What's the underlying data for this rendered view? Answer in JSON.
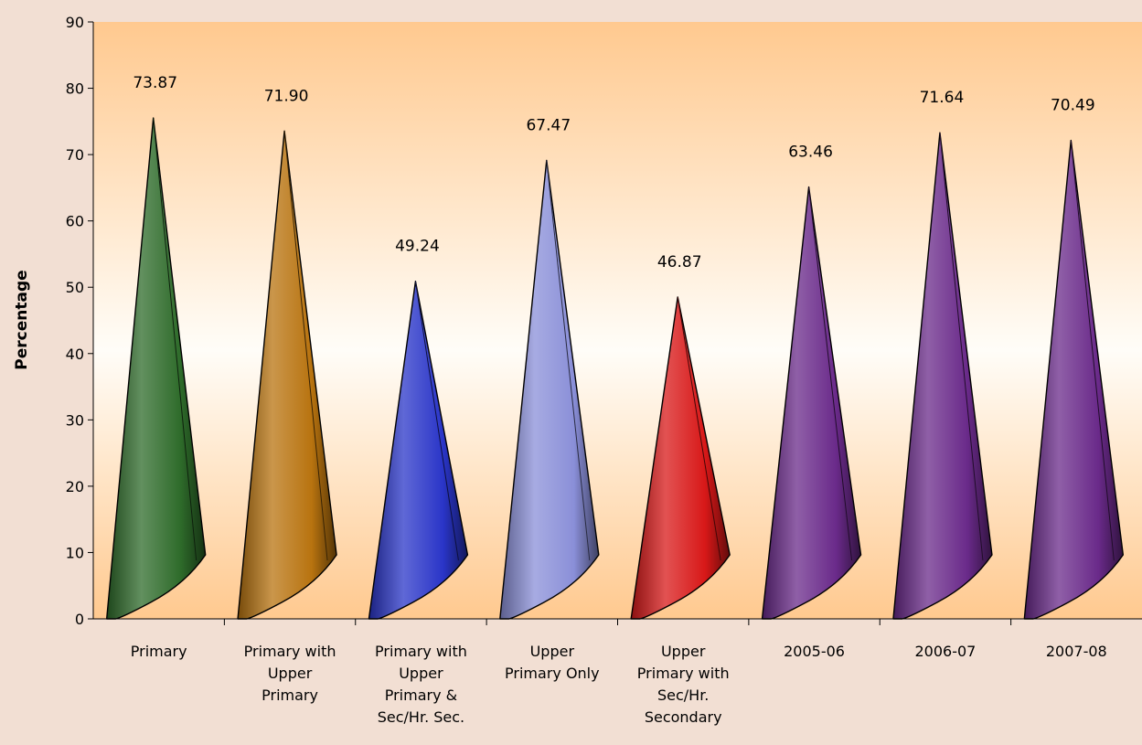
{
  "chart_data": {
    "type": "bar",
    "shape": "cone",
    "ylabel": "Percentage",
    "xlabel": "",
    "ylim": [
      0,
      90
    ],
    "ytick_step": 10,
    "grid": false,
    "categories": [
      [
        "Primary"
      ],
      [
        "Primary with",
        "Upper",
        "Primary"
      ],
      [
        "Primary with",
        "Upper",
        "Primary &",
        "Sec/Hr. Sec."
      ],
      [
        "Upper",
        "Primary Only"
      ],
      [
        "Upper",
        "Primary with",
        "Sec/Hr.",
        "Secondary"
      ],
      [
        "2005-06"
      ],
      [
        "2006-07"
      ],
      [
        "2007-08"
      ]
    ],
    "values": [
      73.87,
      71.9,
      49.24,
      67.47,
      46.87,
      63.46,
      71.64,
      70.49
    ],
    "data_labels": [
      "73.87",
      "71.90",
      "49.24",
      "67.47",
      "46.87",
      "63.46",
      "71.64",
      "70.49"
    ],
    "colors": [
      "#2e6b2a",
      "#b8730f",
      "#2a35c8",
      "#8a8fd8",
      "#d81818",
      "#6a2a8a",
      "#6a2a8a",
      "#6a2a8a"
    ],
    "plot_background": [
      "#ffc98f",
      "#fffdf8",
      "#ffc98f"
    ]
  }
}
